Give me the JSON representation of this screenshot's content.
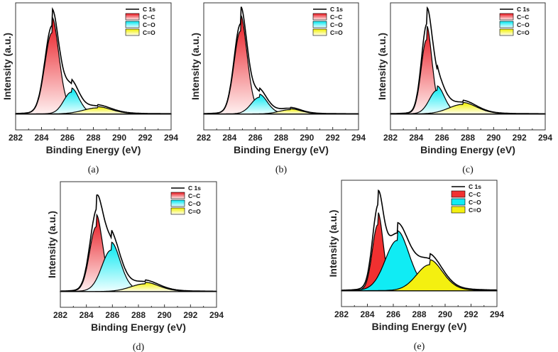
{
  "chart_data": [
    {
      "type": "area",
      "caption": "(a)",
      "title": "",
      "xlabel": "Binding Energy (eV)",
      "ylabel": "Intensity (a.u.)",
      "xlim": [
        282,
        294
      ],
      "xticks": [
        282,
        284,
        286,
        288,
        290,
        292,
        294
      ],
      "legend": [
        "C 1s",
        "C−C",
        "C−O",
        "C=O"
      ],
      "legend_position": "top-right",
      "components": [
        {
          "name": "C−C",
          "center": 284.8,
          "height": 0.93,
          "fwhm": 1.3
        },
        {
          "name": "C−O",
          "center": 286.3,
          "height": 0.25,
          "fwhm": 1.4
        },
        {
          "name": "C=O",
          "center": 288.3,
          "height": 0.07,
          "fwhm": 2.6
        }
      ]
    },
    {
      "type": "area",
      "caption": "(b)",
      "title": "",
      "xlabel": "Binding Energy (eV)",
      "ylabel": "Intensity (a.u.)",
      "xlim": [
        282,
        294
      ],
      "xticks": [
        282,
        284,
        286,
        288,
        290,
        292,
        294
      ],
      "legend": [
        "C 1s",
        "C−C",
        "C−O",
        "C=O"
      ],
      "legend_position": "top-right",
      "components": [
        {
          "name": "C−C",
          "center": 284.85,
          "height": 0.95,
          "fwhm": 1.2
        },
        {
          "name": "C−O",
          "center": 286.3,
          "height": 0.19,
          "fwhm": 1.5
        },
        {
          "name": "C=O",
          "center": 288.7,
          "height": 0.05,
          "fwhm": 2.0
        }
      ]
    },
    {
      "type": "area",
      "caption": "(c)",
      "title": "",
      "xlabel": "Binding Energy (eV)",
      "ylabel": "Intensity (a.u.)",
      "xlim": [
        282,
        294
      ],
      "xticks": [
        282,
        284,
        286,
        288,
        290,
        292,
        294
      ],
      "legend": [
        "C 1s",
        "C−C",
        "C−O",
        "C=O"
      ],
      "legend_position": "top-right",
      "components": [
        {
          "name": "C−C",
          "center": 284.8,
          "height": 0.85,
          "fwhm": 1.0
        },
        {
          "name": "C−O",
          "center": 285.6,
          "height": 0.27,
          "fwhm": 1.4
        },
        {
          "name": "C=O",
          "center": 287.6,
          "height": 0.11,
          "fwhm": 2.6
        }
      ]
    },
    {
      "type": "area",
      "caption": "(d)",
      "title": "",
      "xlabel": "Binding Energy (eV)",
      "ylabel": "Intensity (a.u.)",
      "xlim": [
        282,
        294
      ],
      "xticks": [
        282,
        284,
        286,
        288,
        290,
        292,
        294
      ],
      "legend": [
        "C 1s",
        "C−C",
        "C−O",
        "C=O"
      ],
      "legend_position": "top-right",
      "components": [
        {
          "name": "C−C",
          "center": 284.75,
          "height": 0.75,
          "fwhm": 1.2
        },
        {
          "name": "C−O",
          "center": 285.9,
          "height": 0.48,
          "fwhm": 1.7
        },
        {
          "name": "C=O",
          "center": 288.5,
          "height": 0.09,
          "fwhm": 2.6
        }
      ]
    },
    {
      "type": "area",
      "caption": "(e)",
      "title": "",
      "xlabel": "Binding Energy (eV)",
      "ylabel": "Intensity (a.u.)",
      "xlim": [
        282,
        294
      ],
      "xticks": [
        282,
        284,
        286,
        288,
        290,
        292,
        294
      ],
      "legend": [
        "C 1s",
        "C−C",
        "C−O",
        "C=O"
      ],
      "legend_position": "top-right",
      "components": [
        {
          "name": "C−C",
          "center": 284.8,
          "height": 0.76,
          "fwhm": 1.0
        },
        {
          "name": "C−O",
          "center": 286.3,
          "height": 0.58,
          "fwhm": 2.2
        },
        {
          "name": "C=O",
          "center": 288.8,
          "height": 0.3,
          "fwhm": 2.4
        }
      ]
    }
  ],
  "colors": {
    "cc": "#e8141c",
    "co": "#00e8f2",
    "coo": "#f2f000",
    "line": "#000000"
  }
}
